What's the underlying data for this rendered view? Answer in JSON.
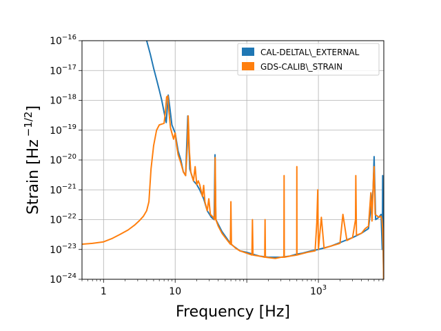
{
  "chart_data": {
    "type": "line",
    "xlabel": "Frequency [Hz]",
    "ylabel": "Strain [Hz",
    "ylabel_exponent": "−1/2",
    "ylabel_close": "]",
    "xscale": "log",
    "yscale": "log",
    "xlim": [
      0.5,
      8192
    ],
    "ylim": [
      1e-24,
      1e-16
    ],
    "grid": true,
    "legend_position": "top-right",
    "x_ticks": [
      {
        "value": 1,
        "label": "1"
      },
      {
        "value": 10,
        "label": "10"
      },
      {
        "value": 1000,
        "label": "10",
        "exp": "3"
      }
    ],
    "y_ticks": [
      {
        "value": 1e-24,
        "label": "10",
        "exp": "−24"
      },
      {
        "value": 1e-23,
        "label": "10",
        "exp": "−23"
      },
      {
        "value": 1e-22,
        "label": "10",
        "exp": "−22"
      },
      {
        "value": 1e-21,
        "label": "10",
        "exp": "−21"
      },
      {
        "value": 1e-20,
        "label": "10",
        "exp": "−20"
      },
      {
        "value": 1e-19,
        "label": "10",
        "exp": "−19"
      },
      {
        "value": 1e-18,
        "label": "10",
        "exp": "−18"
      },
      {
        "value": 1e-17,
        "label": "10",
        "exp": "−17"
      },
      {
        "value": 1e-16,
        "label": "10",
        "exp": "−16"
      }
    ],
    "series": [
      {
        "name": "CAL-DELTAL\\_EXTERNAL",
        "color": "#1f77b4",
        "points": [
          [
            4.0,
            1e-16
          ],
          [
            4.5,
            3.5e-17
          ],
          [
            5.0,
            1.2e-17
          ],
          [
            5.5,
            5e-18
          ],
          [
            6.0,
            2.2e-18
          ],
          [
            6.5,
            1e-18
          ],
          [
            7.0,
            4e-19
          ],
          [
            7.5,
            1.8e-19
          ],
          [
            8.0,
            1.5e-18
          ],
          [
            8.4,
            6e-19
          ],
          [
            9.0,
            1.5e-19
          ],
          [
            10,
            8e-20
          ],
          [
            11,
            2e-20
          ],
          [
            12,
            1e-20
          ],
          [
            13,
            4e-21
          ],
          [
            14,
            3e-21
          ],
          [
            15,
            3e-19
          ],
          [
            16,
            5e-21
          ],
          [
            18,
            2e-21
          ],
          [
            20,
            1.5e-21
          ],
          [
            22,
            1e-21
          ],
          [
            25,
            5e-22
          ],
          [
            28,
            2e-22
          ],
          [
            32,
            1.2e-22
          ],
          [
            35,
            1e-22
          ],
          [
            36,
            1.5e-20
          ],
          [
            37,
            1e-22
          ],
          [
            45,
            4e-23
          ],
          [
            60,
            1.5e-23
          ],
          [
            80,
            9e-24
          ],
          [
            100,
            8e-24
          ],
          [
            120,
            7e-24
          ],
          [
            150,
            6e-24
          ],
          [
            200,
            5.5e-24
          ],
          [
            300,
            5.5e-24
          ],
          [
            400,
            6e-24
          ],
          [
            500,
            7e-24
          ],
          [
            600,
            7.5e-24
          ],
          [
            800,
            9e-24
          ],
          [
            1000,
            1e-23
          ],
          [
            1500,
            1.3e-23
          ],
          [
            2000,
            1.7e-23
          ],
          [
            3000,
            2.5e-23
          ],
          [
            4000,
            3.5e-23
          ],
          [
            5000,
            5e-23
          ],
          [
            5800,
            1e-21
          ],
          [
            6000,
            1.3e-20
          ],
          [
            6300,
            1e-22
          ],
          [
            7000,
            1.2e-22
          ],
          [
            7500,
            1.5e-22
          ],
          [
            7800,
            1e-23
          ],
          [
            7900,
            3e-21
          ],
          [
            8000,
            1e-23
          ],
          [
            8150,
            1e-24
          ]
        ]
      },
      {
        "name": "GDS-CALIB\\_STRAIN",
        "color": "#ff7f0e",
        "points": [
          [
            0.5,
            1.5e-23
          ],
          [
            0.7,
            1.6e-23
          ],
          [
            1.0,
            1.8e-23
          ],
          [
            1.3,
            2.3e-23
          ],
          [
            1.7,
            3.2e-23
          ],
          [
            2.2,
            4.5e-23
          ],
          [
            2.7,
            6.5e-23
          ],
          [
            3.2,
            9.5e-23
          ],
          [
            3.6,
            1.3e-22
          ],
          [
            4.0,
            2e-22
          ],
          [
            4.3,
            4e-22
          ],
          [
            4.6,
            5e-21
          ],
          [
            5.0,
            3e-20
          ],
          [
            5.5,
            1e-19
          ],
          [
            6.0,
            1.5e-19
          ],
          [
            6.5,
            1.6e-19
          ],
          [
            7.0,
            1.7e-19
          ],
          [
            7.3,
            4e-19
          ],
          [
            7.6,
            1.3e-18
          ],
          [
            7.9,
            1.4e-18
          ],
          [
            8.2,
            4e-19
          ],
          [
            8.6,
            1.2e-19
          ],
          [
            9.0,
            8e-20
          ],
          [
            9.5,
            5e-20
          ],
          [
            10,
            8e-20
          ],
          [
            10.5,
            3e-20
          ],
          [
            11,
            1.5e-20
          ],
          [
            12,
            8e-21
          ],
          [
            13,
            4e-21
          ],
          [
            14,
            3e-21
          ],
          [
            14.8,
            3e-20
          ],
          [
            15.2,
            3e-19
          ],
          [
            15.8,
            2e-20
          ],
          [
            16.5,
            4e-21
          ],
          [
            18,
            2e-21
          ],
          [
            19,
            6e-21
          ],
          [
            20,
            1.5e-21
          ],
          [
            21,
            2e-21
          ],
          [
            22,
            1.5e-21
          ],
          [
            24,
            6e-22
          ],
          [
            25,
            1.4e-21
          ],
          [
            26,
            4e-22
          ],
          [
            28,
            2e-22
          ],
          [
            29.5,
            5e-22
          ],
          [
            31,
            1.5e-22
          ],
          [
            34,
            1.2e-22
          ],
          [
            35.5,
            1e-22
          ],
          [
            36.2,
            1.2e-20
          ],
          [
            37,
            1e-22
          ],
          [
            40,
            6e-23
          ],
          [
            45,
            3.5e-23
          ],
          [
            50,
            2.5e-23
          ],
          [
            59,
            1.5e-23
          ],
          [
            60,
            4e-22
          ],
          [
            61,
            1.5e-23
          ],
          [
            70,
            1.1e-23
          ],
          [
            80,
            9e-24
          ],
          [
            100,
            7.5e-24
          ],
          [
            118,
            6.5e-24
          ],
          [
            120,
            1e-22
          ],
          [
            122,
            6.5e-24
          ],
          [
            150,
            6e-24
          ],
          [
            178,
            5.5e-24
          ],
          [
            180,
            1e-22
          ],
          [
            182,
            5.5e-24
          ],
          [
            250,
            5e-24
          ],
          [
            300,
            5.5e-24
          ],
          [
            330,
            5.5e-24
          ],
          [
            332,
            3e-21
          ],
          [
            334,
            5.5e-24
          ],
          [
            400,
            6e-24
          ],
          [
            498,
            6.5e-24
          ],
          [
            500,
            6e-21
          ],
          [
            502,
            6.5e-24
          ],
          [
            700,
            8e-24
          ],
          [
            900,
            9e-24
          ],
          [
            950,
            8e-23
          ],
          [
            980,
            1e-21
          ],
          [
            1000,
            1e-23
          ],
          [
            1100,
            1.2e-22
          ],
          [
            1200,
            1.1e-23
          ],
          [
            1500,
            1.3e-23
          ],
          [
            2000,
            1.6e-23
          ],
          [
            2200,
            1.5e-22
          ],
          [
            2500,
            2e-23
          ],
          [
            3000,
            2.5e-23
          ],
          [
            3300,
            1e-22
          ],
          [
            3330,
            3e-21
          ],
          [
            3400,
            3e-23
          ],
          [
            4000,
            3.5e-23
          ],
          [
            4500,
            5e-23
          ],
          [
            5000,
            6e-23
          ],
          [
            5400,
            8e-22
          ],
          [
            5600,
            9e-23
          ],
          [
            5900,
            3e-21
          ],
          [
            6000,
            6e-21
          ],
          [
            6200,
            1.5e-22
          ],
          [
            7000,
            1.2e-22
          ],
          [
            7500,
            1.3e-22
          ],
          [
            7700,
            1e-22
          ],
          [
            7900,
            5e-23
          ],
          [
            8050,
            1e-23
          ],
          [
            8150,
            1e-24
          ]
        ]
      }
    ]
  }
}
